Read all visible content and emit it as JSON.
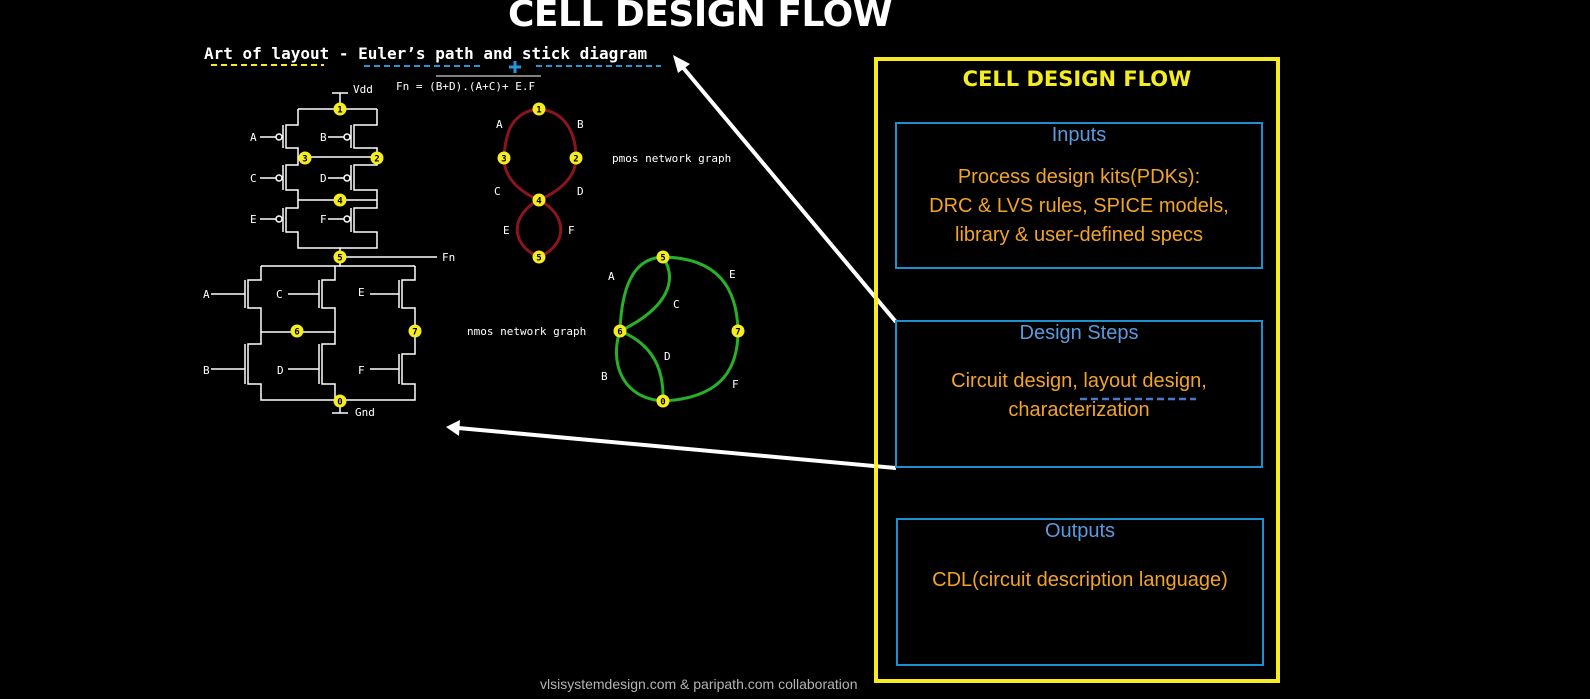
{
  "title": "CELL DESIGN FLOW",
  "subtitle": "Art of layout - Euler’s path and stick diagram",
  "footer": "vlsisystemdesign.com & paripath.com collaboration",
  "flow": {
    "title": "CELL DESIGN FLOW",
    "inputs": {
      "heading": "Inputs",
      "lines": [
        "Process design kits(PDKs):",
        "DRC & LVS rules, SPICE models,",
        "library & user-defined specs"
      ]
    },
    "steps": {
      "heading": "Design Steps",
      "lines": [
        "Circuit design, layout design,",
        "characterization"
      ]
    },
    "outputs": {
      "heading": "Outputs",
      "lines": [
        "CDL(circuit description language)"
      ]
    }
  },
  "schematic": {
    "formula": "Fn = (B+D).(A+C)+ E.F",
    "vdd": "Vdd",
    "gnd": "Gnd",
    "fn": "Fn",
    "pmos_labels": [
      "A",
      "B",
      "C",
      "D",
      "E",
      "F"
    ],
    "nmos_labels": [
      "A",
      "C",
      "E",
      "B",
      "D",
      "F"
    ],
    "nodes": [
      "1",
      "3",
      "2",
      "4",
      "5",
      "6",
      "7",
      "0"
    ]
  },
  "pmos_graph": {
    "label": "pmos network graph",
    "nodes": [
      "1",
      "3",
      "2",
      "4",
      "5"
    ],
    "edges": [
      "A",
      "B",
      "C",
      "D",
      "E",
      "F"
    ]
  },
  "nmos_graph": {
    "label": "nmos network graph",
    "nodes": [
      "5",
      "6",
      "7",
      "0"
    ],
    "edges": [
      "A",
      "C",
      "E",
      "D",
      "B",
      "F"
    ]
  },
  "colors": {
    "panel_border": "#f5ec21",
    "box_border": "#1f8fd0",
    "heading": "#5c9ae0",
    "body_text": "#f2a426",
    "node_fill": "#f5ec21",
    "pmos_edge": "#8a1420",
    "nmos_edge": "#28b028"
  }
}
